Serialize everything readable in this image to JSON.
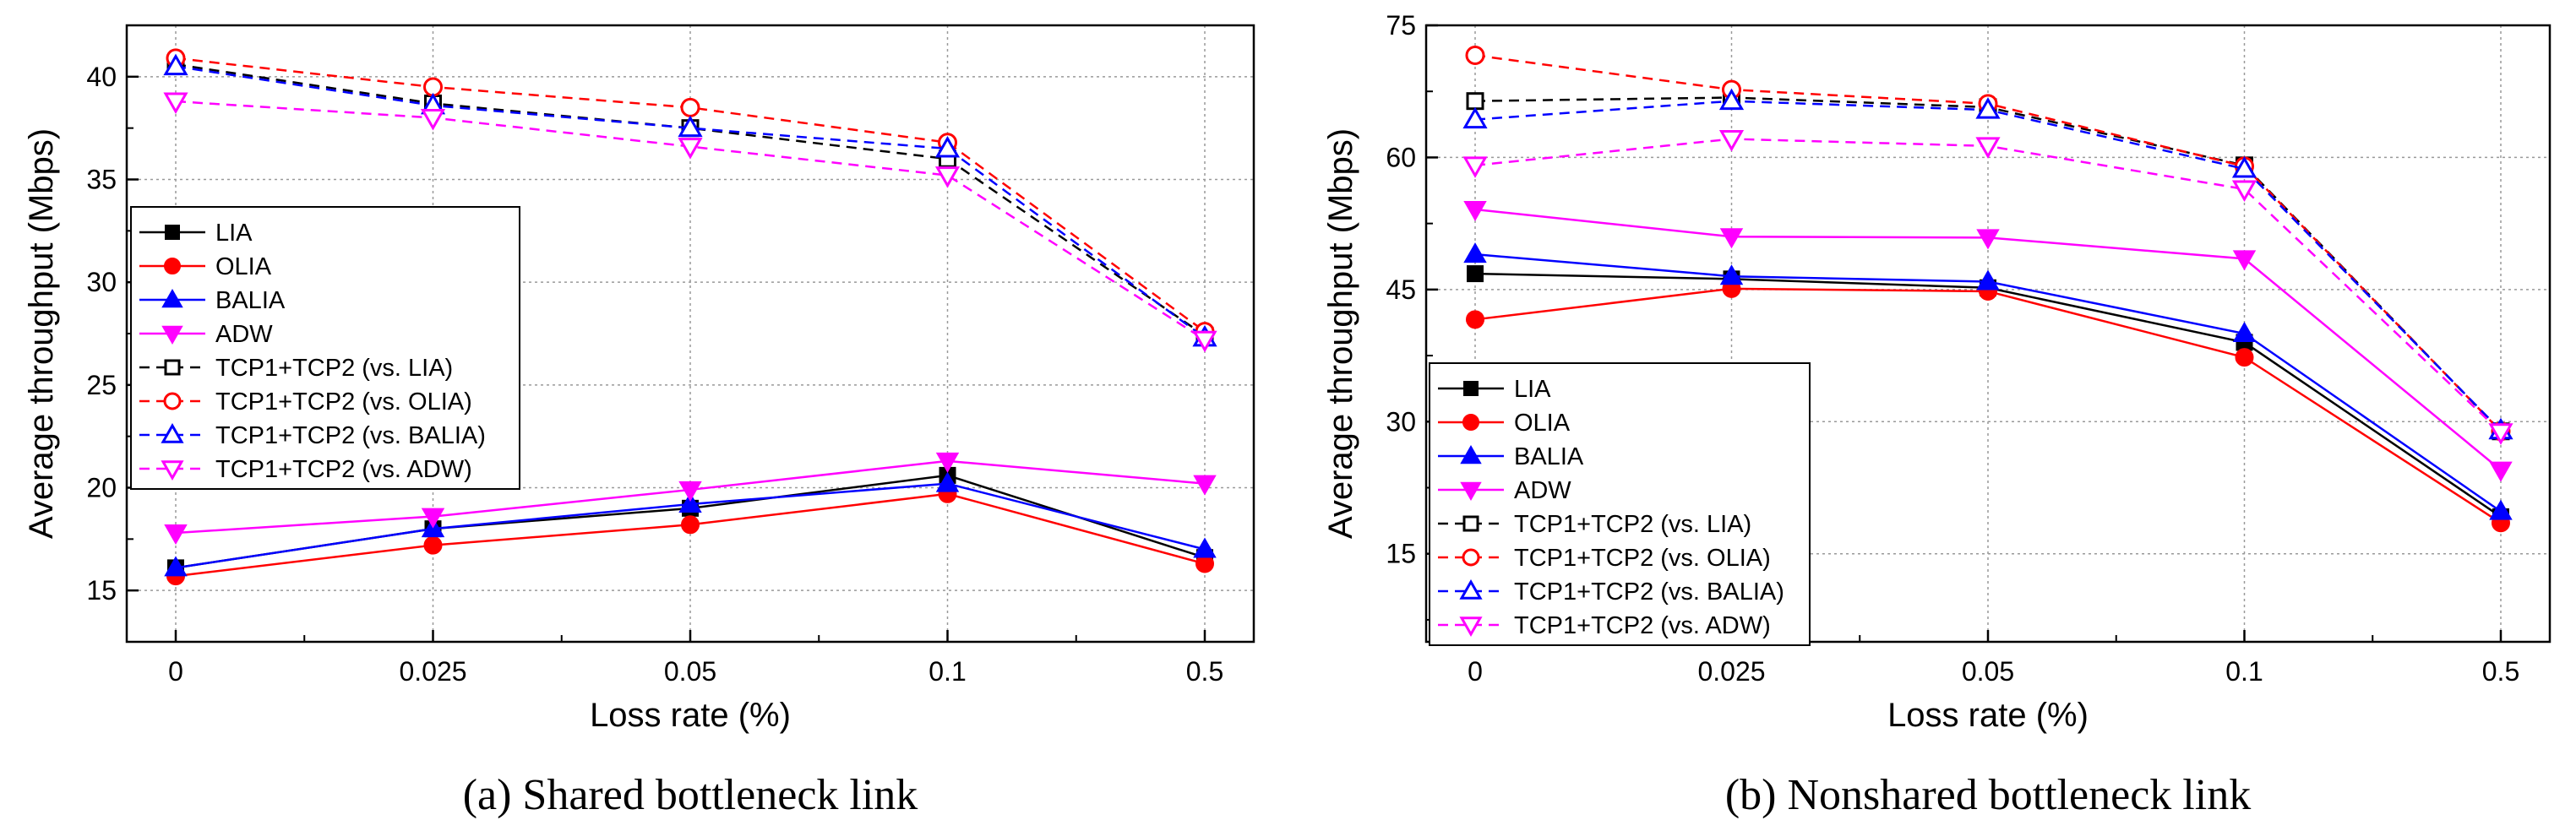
{
  "chart_data": [
    {
      "type": "line",
      "title": "",
      "caption": "(a) Shared bottleneck link",
      "xlabel": "Loss rate (%)",
      "ylabel": "Average throughput (Mbps)",
      "categories": [
        "0",
        "0.025",
        "0.05",
        "0.1",
        "0.5"
      ],
      "ylim": [
        12.5,
        42.5
      ],
      "yticks": [
        15,
        20,
        25,
        30,
        35,
        40
      ],
      "grid": true,
      "legend_position": "center-left",
      "series": [
        {
          "name": "LIA",
          "values": [
            16.1,
            18.0,
            19.0,
            20.6,
            16.6
          ],
          "color": "#000000",
          "marker": "square",
          "filled": true,
          "dashed": false
        },
        {
          "name": "OLIA",
          "values": [
            15.7,
            17.2,
            18.2,
            19.7,
            16.3
          ],
          "color": "#ff0000",
          "marker": "circle",
          "filled": true,
          "dashed": false
        },
        {
          "name": "BALIA",
          "values": [
            16.1,
            18.0,
            19.2,
            20.2,
            17.0
          ],
          "color": "#0000ff",
          "marker": "triangle-up",
          "filled": true,
          "dashed": false
        },
        {
          "name": "ADW",
          "values": [
            17.8,
            18.6,
            19.9,
            21.3,
            20.2
          ],
          "color": "#ff00ff",
          "marker": "triangle-down",
          "filled": true,
          "dashed": false
        },
        {
          "name": "TCP1+TCP2 (vs. LIA)",
          "values": [
            40.6,
            38.7,
            37.5,
            36.0,
            27.4
          ],
          "color": "#000000",
          "marker": "square",
          "filled": false,
          "dashed": true
        },
        {
          "name": "TCP1+TCP2 (vs. OLIA)",
          "values": [
            40.9,
            39.5,
            38.5,
            36.8,
            27.6
          ],
          "color": "#ff0000",
          "marker": "circle",
          "filled": false,
          "dashed": true
        },
        {
          "name": "TCP1+TCP2 (vs. BALIA)",
          "values": [
            40.5,
            38.6,
            37.5,
            36.5,
            27.3
          ],
          "color": "#0000ff",
          "marker": "triangle-up",
          "filled": false,
          "dashed": true
        },
        {
          "name": "TCP1+TCP2 (vs. ADW)",
          "values": [
            38.8,
            38.0,
            36.6,
            35.2,
            27.2
          ],
          "color": "#ff00ff",
          "marker": "triangle-down",
          "filled": false,
          "dashed": true
        }
      ]
    },
    {
      "type": "line",
      "title": "",
      "caption": "(b) Nonshared bottleneck link",
      "xlabel": "Loss rate (%)",
      "ylabel": "Average throughput (Mbps)",
      "categories": [
        "0",
        "0.025",
        "0.05",
        "0.1",
        "0.5"
      ],
      "ylim": [
        5,
        75
      ],
      "yticks": [
        15,
        30,
        45,
        60,
        75
      ],
      "grid": true,
      "legend_position": "bottom-left",
      "series": [
        {
          "name": "LIA",
          "values": [
            46.8,
            46.2,
            45.2,
            39.0,
            19.2
          ],
          "color": "#000000",
          "marker": "square",
          "filled": true,
          "dashed": false
        },
        {
          "name": "OLIA",
          "values": [
            41.6,
            45.1,
            44.8,
            37.3,
            18.5
          ],
          "color": "#ff0000",
          "marker": "circle",
          "filled": true,
          "dashed": false
        },
        {
          "name": "BALIA",
          "values": [
            49.0,
            46.5,
            45.9,
            40.0,
            19.8
          ],
          "color": "#0000ff",
          "marker": "triangle-up",
          "filled": true,
          "dashed": false
        },
        {
          "name": "ADW",
          "values": [
            54.1,
            51.0,
            50.9,
            48.5,
            24.5
          ],
          "color": "#ff00ff",
          "marker": "triangle-down",
          "filled": true,
          "dashed": false
        },
        {
          "name": "TCP1+TCP2 (vs. LIA)",
          "values": [
            66.4,
            66.8,
            65.7,
            59.1,
            28.9
          ],
          "color": "#000000",
          "marker": "square",
          "filled": false,
          "dashed": true
        },
        {
          "name": "TCP1+TCP2 (vs. OLIA)",
          "values": [
            71.6,
            67.7,
            66.1,
            59.0,
            28.9
          ],
          "color": "#ff0000",
          "marker": "circle",
          "filled": false,
          "dashed": true
        },
        {
          "name": "TCP1+TCP2 (vs. BALIA)",
          "values": [
            64.3,
            66.4,
            65.4,
            58.7,
            29.0
          ],
          "color": "#0000ff",
          "marker": "triangle-up",
          "filled": false,
          "dashed": true
        },
        {
          "name": "TCP1+TCP2 (vs. ADW)",
          "values": [
            59.1,
            62.1,
            61.3,
            56.4,
            28.8
          ],
          "color": "#ff00ff",
          "marker": "triangle-down",
          "filled": false,
          "dashed": true
        }
      ]
    }
  ]
}
